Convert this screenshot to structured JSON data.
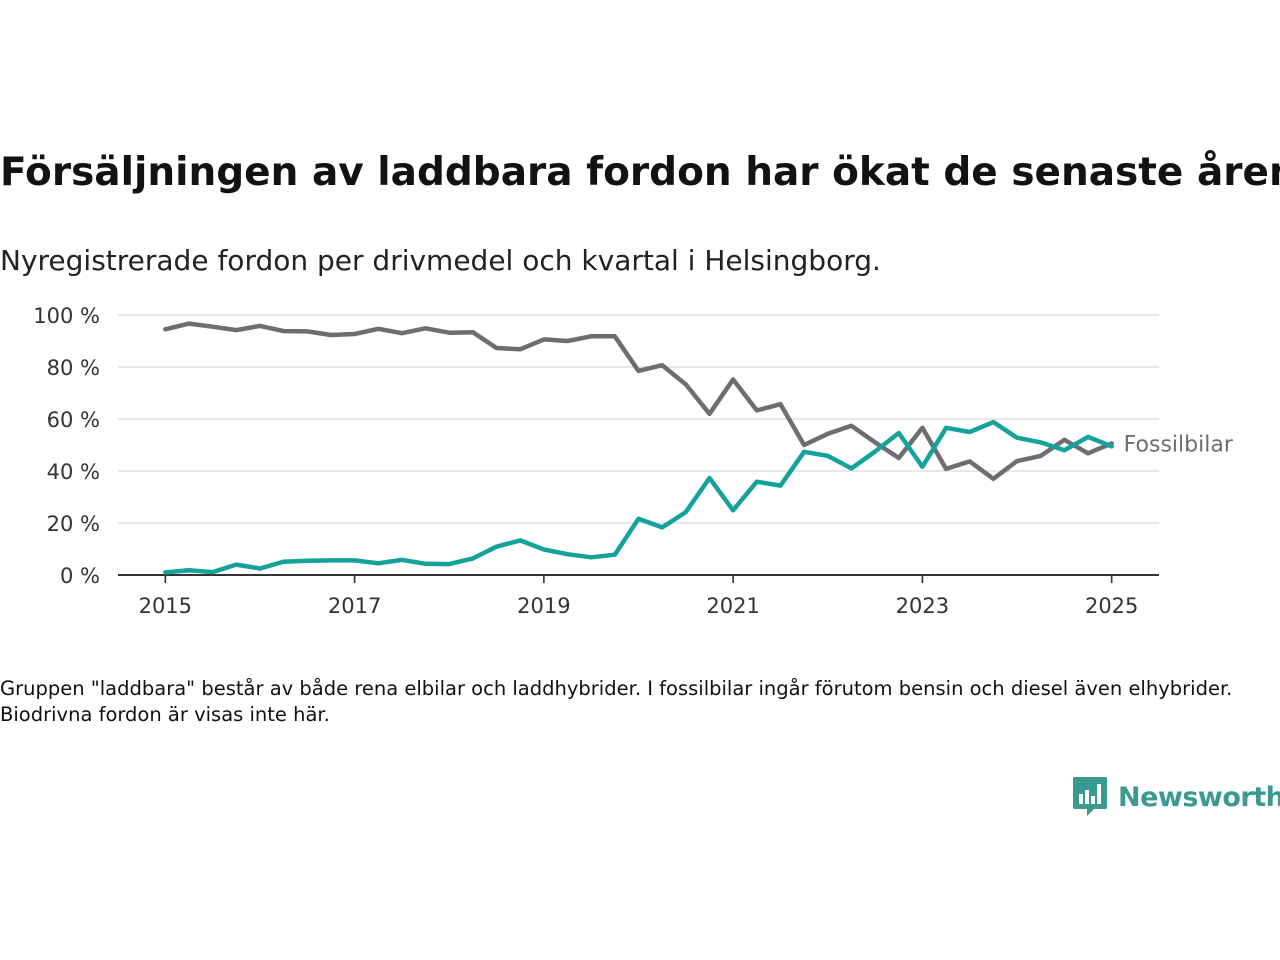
{
  "title": "Försäljningen av laddbara fordon har ökat de senaste åren",
  "subtitle": "Nyregistrerade fordon per drivmedel och kvartal i Helsingborg.",
  "footnote": "Gruppen \"laddbara\" består av både rena elbilar och laddhybrider. I fossilbilar ingår förutom bensin och diesel även elhybrider. Biodrivna fordon är visas inte här.",
  "logo": {
    "text": "Newsworthy",
    "color": "#3a9a90"
  },
  "chart_data": {
    "type": "line",
    "x": [
      2015.0,
      2015.25,
      2015.5,
      2015.75,
      2016.0,
      2016.25,
      2016.5,
      2016.75,
      2017.0,
      2017.25,
      2017.5,
      2017.75,
      2018.0,
      2018.25,
      2018.5,
      2018.75,
      2019.0,
      2019.25,
      2019.5,
      2019.75,
      2020.0,
      2020.25,
      2020.5,
      2020.75,
      2021.0,
      2021.25,
      2021.5,
      2021.75,
      2022.0,
      2022.25,
      2022.5,
      2022.75,
      2023.0,
      2023.25,
      2023.5,
      2023.75,
      2024.0,
      2024.25,
      2024.5,
      2024.75,
      2025.0
    ],
    "xlim": [
      2014.5,
      2025.5
    ],
    "xticks": [
      2015,
      2017,
      2019,
      2021,
      2023,
      2025
    ],
    "ylim": [
      0,
      100
    ],
    "yticks": [
      0,
      20,
      40,
      60,
      80,
      100
    ],
    "ytick_labels": [
      "0 %",
      "20 %",
      "40 %",
      "60 %",
      "80 %",
      "100 %"
    ],
    "grid": "horizontal",
    "series": [
      {
        "name": "Fossilbilar",
        "color": "#6e6d72",
        "values": [
          94.5,
          96.7,
          95.5,
          94.2,
          95.8,
          93.8,
          93.7,
          92.3,
          92.7,
          94.7,
          93.0,
          94.9,
          93.2,
          93.4,
          87.3,
          86.8,
          90.6,
          90.0,
          91.8,
          91.8,
          78.5,
          80.7,
          73.3,
          62.0,
          75.2,
          63.3,
          65.7,
          50.0,
          54.3,
          57.4,
          51.0,
          45.0,
          56.6,
          40.8,
          43.7,
          37.0,
          43.8,
          45.8,
          52.0,
          46.8,
          50.6
        ]
      },
      {
        "name": "",
        "color": "#14a39a",
        "values": [
          1.0,
          1.8,
          1.1,
          4.0,
          2.5,
          5.1,
          5.5,
          5.6,
          5.6,
          4.5,
          5.8,
          4.3,
          4.2,
          6.4,
          10.9,
          13.3,
          9.8,
          8.0,
          6.8,
          7.8,
          21.6,
          18.3,
          24.2,
          37.3,
          24.9,
          35.9,
          34.4,
          47.4,
          45.8,
          41.0,
          47.5,
          54.6,
          41.6,
          56.6,
          55.0,
          58.8,
          52.8,
          51.0,
          48.0,
          53.1,
          49.5
        ]
      }
    ]
  }
}
